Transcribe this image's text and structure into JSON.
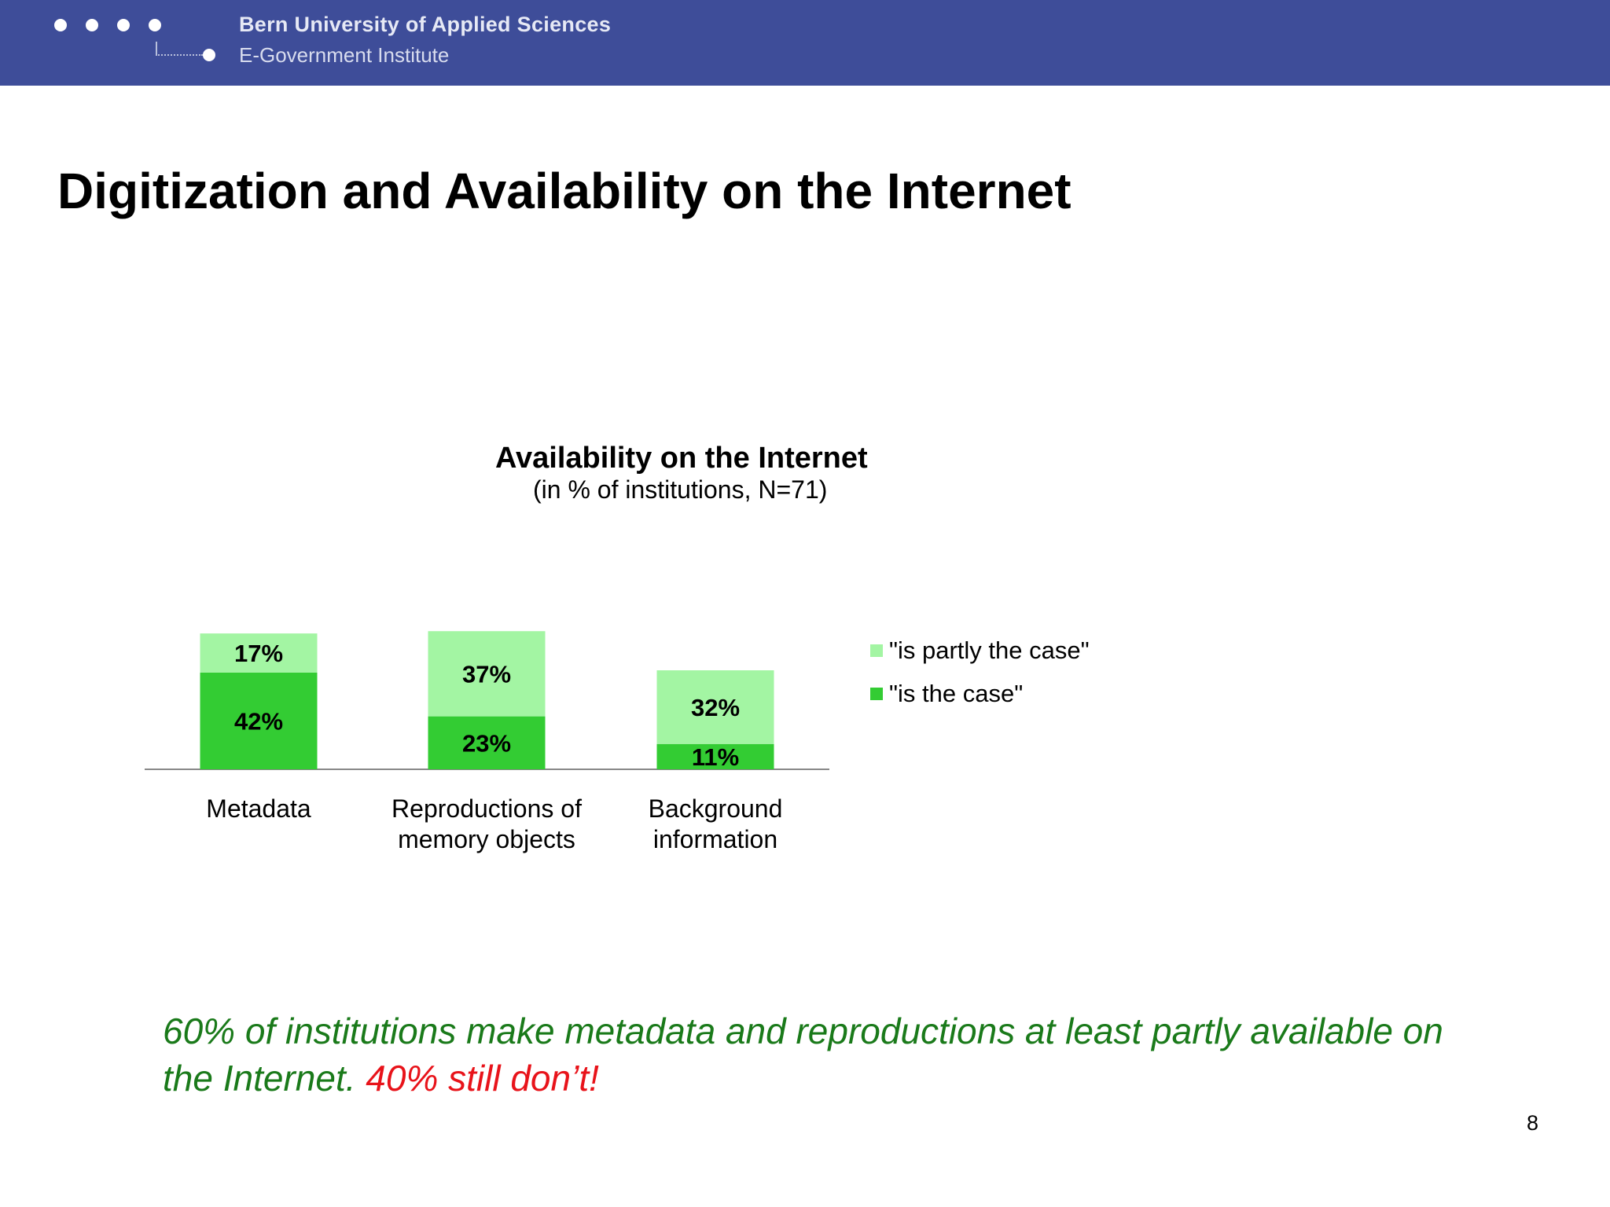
{
  "header": {
    "org_name": "Bern University of Applied Sciences",
    "org_unit": "E-Government Institute",
    "logo_icon": "four-dots-logo-icon",
    "background_color": "#3e4d99"
  },
  "slide": {
    "title": "Digitization and Availability on the Internet",
    "page_number": "8",
    "conclusion_main": "60% of institutions make metadata and reproductions at least partly available on the Internet.",
    "conclusion_warning": "40% still don’t!"
  },
  "chart_data": {
    "type": "bar",
    "stacked": true,
    "title": "Availability on the Internet",
    "subtitle": "(in % of institutions, N=71)",
    "categories": [
      "Metadata",
      "Reproductions of memory objects",
      "Background information"
    ],
    "category_lines": [
      [
        "Metadata"
      ],
      [
        "Reproductions of",
        "memory objects"
      ],
      [
        "Background",
        "information"
      ]
    ],
    "series": [
      {
        "name": "\"is the case\"",
        "values": [
          42,
          23,
          11
        ],
        "labels": [
          "42%",
          "23%",
          "11%"
        ],
        "color": "#33cc33"
      },
      {
        "name": "\"is partly the case\"",
        "values": [
          17,
          37,
          32
        ],
        "labels": [
          "17%",
          "37%",
          "32%"
        ],
        "color": "#a3f5a3"
      }
    ],
    "legend_order": [
      1,
      0
    ],
    "legend_position": "right",
    "grid": false,
    "y_axis_visible": false
  }
}
